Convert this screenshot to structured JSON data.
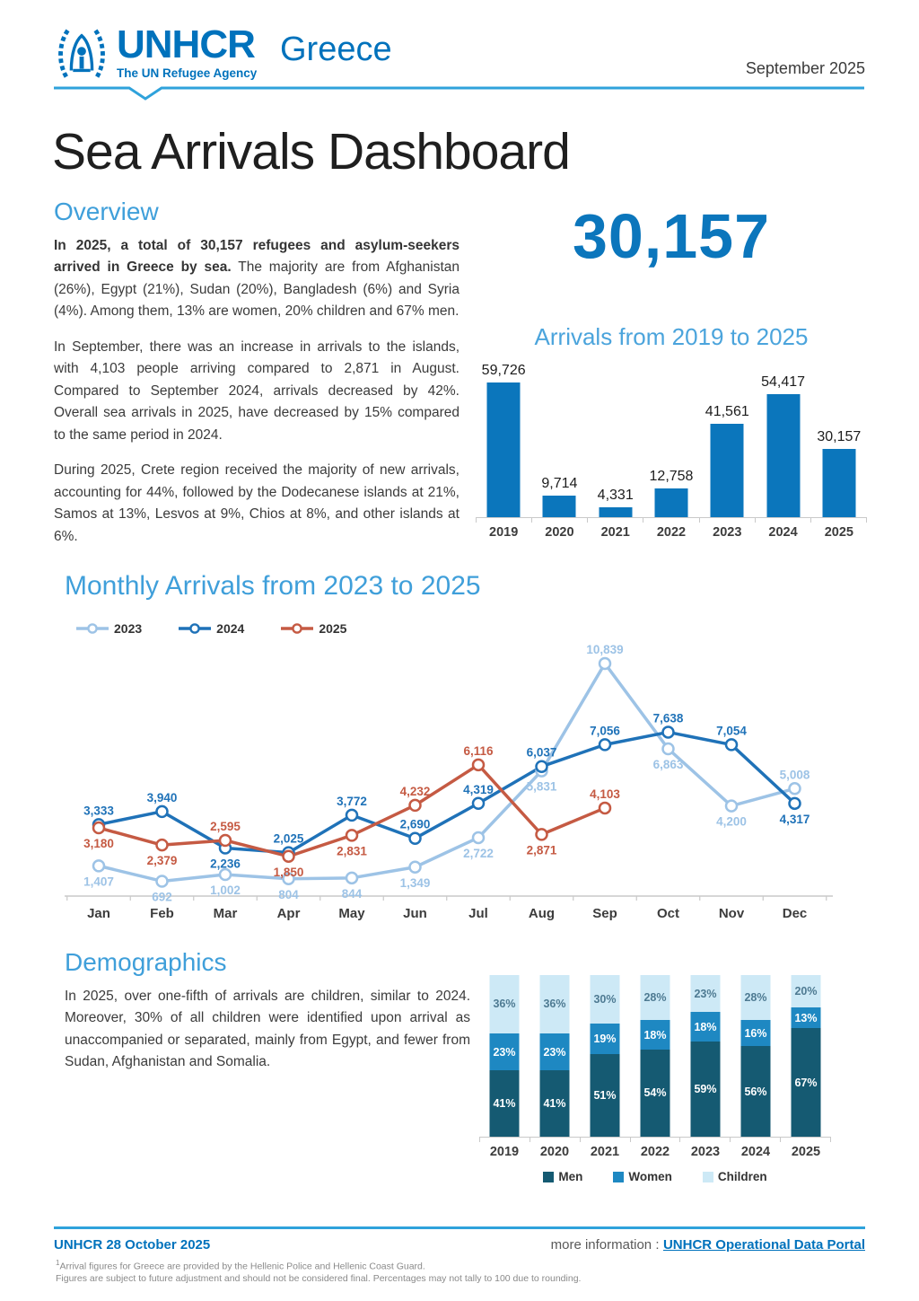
{
  "header": {
    "org": "UNHCR",
    "tagline": "The UN Refugee Agency",
    "country": "Greece",
    "date": "September 2025"
  },
  "title": "Sea Arrivals Dashboard",
  "overview": {
    "heading": "Overview",
    "p1_bold": "In 2025, a total of 30,157 refugees and asylum-seekers arrived in Greece by sea.",
    "p1_rest": " The majority are from Afghanistan (26%), Egypt (21%), Sudan (20%), Bangladesh (6%) and Syria (4%). Among them, 13% are women, 20% children and 67% men.",
    "p2": "In September, there was an increase in arrivals to the islands, with 4,103 people arriving compared to 2,871 in August. Compared to September 2024, arrivals decreased by 42%. Overall sea arrivals in 2025, have decreased by 15% compared to the same period in 2024.",
    "p3": "During 2025, Crete region received the majority of new arrivals, accounting for 44%, followed by the Dodecanese islands at 21%, Samos at 13%, Lesvos at 9%, Chios at 8%, and other islands at 6%."
  },
  "stats": {
    "total": "30,157"
  },
  "demographics": {
    "heading": "Demographics",
    "p": "In 2025, over one-fifth of arrivals are children, similar to 2024. Moreover, 30% of all children were identified upon arrival as unaccompanied or separated, mainly from Egypt, and fewer from Sudan, Afghanistan and Somalia."
  },
  "footer": {
    "brand_date": "UNHCR 28 October 2025",
    "more_info_label": "more information :",
    "link_label": "UNHCR Operational Data Portal",
    "fn1_sup": "1",
    "fn1": "Arrival figures for Greece are provided by the Hellenic Police and Hellenic Coast Guard.",
    "fn2": "Figures are subject to future adjustment and should not be considered final. Percentages may not tally to 100 due to rounding."
  },
  "chart_data": [
    {
      "id": "yearly_arrivals",
      "type": "bar",
      "title": "Arrivals from 2019 to 2025",
      "categories": [
        "2019",
        "2020",
        "2021",
        "2022",
        "2023",
        "2024",
        "2025"
      ],
      "values": [
        59726,
        9714,
        4331,
        12758,
        41561,
        54417,
        30157
      ],
      "labels": [
        "59,726",
        "9,714",
        "4,331",
        "12,758",
        "41,561",
        "54,417",
        "30,157"
      ],
      "bar_color": "#0B76BC",
      "ylim": [
        0,
        60000
      ],
      "grid": false
    },
    {
      "id": "monthly_arrivals",
      "type": "line",
      "title": "Monthly Arrivals from 2023 to 2025",
      "x": [
        "Jan",
        "Feb",
        "Mar",
        "Apr",
        "May",
        "Jun",
        "Jul",
        "Aug",
        "Sep",
        "Oct",
        "Nov",
        "Dec"
      ],
      "legend_position": "top-left",
      "grid": false,
      "ylim": [
        0,
        11500
      ],
      "series": [
        {
          "name": "2023",
          "color": "#9DC3E6",
          "values": [
            1407,
            692,
            1002,
            804,
            844,
            1349,
            2722,
            5831,
            10839,
            6863,
            4200,
            5008
          ],
          "labels": [
            "1,407",
            "692",
            "1,002",
            "804",
            "844",
            "1,349",
            "2,722",
            "5,831",
            "10,839",
            "6,863",
            "4,200",
            "5,008"
          ],
          "label_pos": [
            "b",
            "b",
            "b",
            "b",
            "b",
            "b",
            "b",
            "b",
            "a",
            "b",
            "b",
            "a"
          ]
        },
        {
          "name": "2024",
          "color": "#1F72B8",
          "values": [
            3333,
            3940,
            2236,
            2025,
            3772,
            2690,
            4319,
            6037,
            7056,
            7638,
            7054,
            4317
          ],
          "labels": [
            "3,333",
            "3,940",
            "2,236",
            "2,025",
            "3,772",
            "2,690",
            "4,319",
            "6,037",
            "7,056",
            "7,638",
            "7,054",
            "4,317"
          ],
          "label_pos": [
            "a",
            "a",
            "b",
            "a",
            "a",
            "a",
            "a",
            "a",
            "a",
            "a",
            "a",
            "b"
          ]
        },
        {
          "name": "2025",
          "color": "#C55A43",
          "values": [
            3180,
            2379,
            2595,
            1850,
            2831,
            4232,
            6116,
            2871,
            4103
          ],
          "labels": [
            "3,180",
            "2,379",
            "2,595",
            "1,850",
            "2,831",
            "4,232",
            "6,116",
            "2,871",
            "4,103"
          ],
          "label_pos": [
            "b",
            "b",
            "a",
            "b",
            "b",
            "a",
            "a",
            "b",
            "a"
          ]
        }
      ]
    },
    {
      "id": "demographics",
      "type": "bar_stacked_100",
      "categories": [
        "2019",
        "2020",
        "2021",
        "2022",
        "2023",
        "2024",
        "2025"
      ],
      "series": [
        {
          "name": "Men",
          "color": "#155A72",
          "label_color": "#ffffff",
          "values": [
            41,
            41,
            51,
            54,
            59,
            56,
            67
          ],
          "labels": [
            "41%",
            "41%",
            "51%",
            "54%",
            "59%",
            "56%",
            "67%"
          ]
        },
        {
          "name": "Women",
          "color": "#1E88C2",
          "label_color": "#ffffff",
          "values": [
            23,
            23,
            19,
            18,
            18,
            16,
            13
          ],
          "labels": [
            "23%",
            "23%",
            "19%",
            "18%",
            "18%",
            "16%",
            "13%"
          ]
        },
        {
          "name": "Children",
          "color": "#CDE9F6",
          "label_color": "#4E7A92",
          "values": [
            36,
            36,
            30,
            28,
            23,
            28,
            20
          ],
          "labels": [
            "36%",
            "36%",
            "30%",
            "28%",
            "23%",
            "28%",
            "20%"
          ]
        }
      ],
      "legend_position": "bottom"
    }
  ]
}
